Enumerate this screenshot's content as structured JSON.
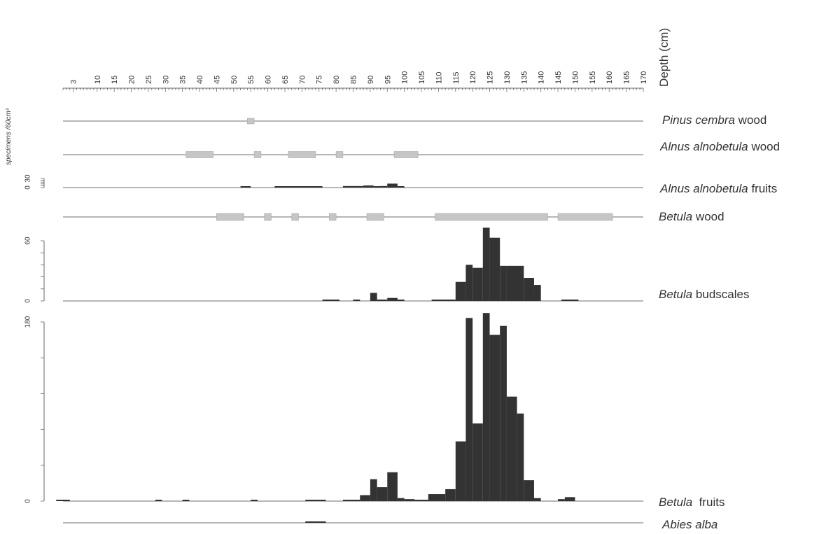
{
  "colors": {
    "axis": "#666666",
    "baseline": "#8a8a8a",
    "bar": "#333333",
    "presence": "#c6c6c6",
    "presence_stroke": "#a8a8a8",
    "text": "#333333"
  },
  "chart_data": {
    "type": "bar",
    "title": "",
    "depth_axis": {
      "label": "Depth (cm)",
      "range": [
        0,
        170
      ],
      "tick_labels": [
        3,
        10,
        15,
        20,
        25,
        30,
        35,
        40,
        45,
        50,
        55,
        60,
        65,
        70,
        75,
        80,
        85,
        90,
        95,
        100,
        105,
        110,
        115,
        120,
        125,
        130,
        135,
        140,
        145,
        150,
        155,
        160,
        165,
        170
      ],
      "minor_tick_step": 1
    },
    "y_unit_label": "specimens /60cm³",
    "series": [
      {
        "id": "pinus_wood",
        "name": "Pinus cembra wood",
        "label_italic": "Pinus cembra",
        "label_rest": " wood",
        "kind": "presence",
        "intervals": [
          [
            54,
            56
          ]
        ]
      },
      {
        "id": "alnus_wood",
        "name": "Alnus alnobetula wood",
        "label_italic": "Alnus alnobetula",
        "label_rest": " wood",
        "kind": "presence",
        "intervals": [
          [
            36,
            44
          ],
          [
            56,
            58
          ],
          [
            66,
            74
          ],
          [
            80,
            82
          ],
          [
            97,
            104
          ]
        ]
      },
      {
        "id": "alnus_fruits",
        "name": "Alnus alnobetula fruits",
        "label_italic": "Alnus alnobetula",
        "label_rest": " fruits",
        "kind": "bars",
        "ylim": [
          0,
          30
        ],
        "y_tick_labels": [
          0,
          30
        ],
        "bars": [
          {
            "x0": 52,
            "x1": 55,
            "v": 1
          },
          {
            "x0": 62,
            "x1": 66,
            "v": 3
          },
          {
            "x0": 66,
            "x1": 76,
            "v": 1
          },
          {
            "x0": 82,
            "x1": 88,
            "v": 5
          },
          {
            "x0": 88,
            "x1": 91,
            "v": 7
          },
          {
            "x0": 91,
            "x1": 93,
            "v": 3
          },
          {
            "x0": 93,
            "x1": 95,
            "v": 5
          },
          {
            "x0": 95,
            "x1": 98,
            "v": 13
          },
          {
            "x0": 98,
            "x1": 100,
            "v": 1
          }
        ]
      },
      {
        "id": "betula_wood",
        "name": "Betula wood",
        "label_italic": "Betula",
        "label_rest": " wood",
        "kind": "presence",
        "intervals": [
          [
            45,
            53
          ],
          [
            59,
            61
          ],
          [
            67,
            69
          ],
          [
            78,
            80
          ],
          [
            89,
            94
          ],
          [
            109,
            142
          ],
          [
            145,
            161
          ]
        ]
      },
      {
        "id": "betula_budscales",
        "name": "Betula budscales",
        "label_italic": "Betula",
        "label_rest": " budscales",
        "kind": "bars",
        "ylim": [
          0,
          60
        ],
        "y_tick_labels": [
          0,
          60
        ],
        "bars": [
          {
            "x0": 76,
            "x1": 81,
            "v": 1
          },
          {
            "x0": 85,
            "x1": 87,
            "v": 1
          },
          {
            "x0": 90,
            "x1": 92,
            "v": 8
          },
          {
            "x0": 92,
            "x1": 95,
            "v": 1
          },
          {
            "x0": 95,
            "x1": 98,
            "v": 3
          },
          {
            "x0": 98,
            "x1": 100,
            "v": 1
          },
          {
            "x0": 108,
            "x1": 115,
            "v": 1
          },
          {
            "x0": 115,
            "x1": 118,
            "v": 19
          },
          {
            "x0": 118,
            "x1": 120,
            "v": 36
          },
          {
            "x0": 120,
            "x1": 123,
            "v": 33
          },
          {
            "x0": 123,
            "x1": 125,
            "v": 73
          },
          {
            "x0": 125,
            "x1": 128,
            "v": 63
          },
          {
            "x0": 128,
            "x1": 130,
            "v": 35
          },
          {
            "x0": 130,
            "x1": 135,
            "v": 35
          },
          {
            "x0": 135,
            "x1": 138,
            "v": 23
          },
          {
            "x0": 138,
            "x1": 140,
            "v": 16
          },
          {
            "x0": 146,
            "x1": 149,
            "v": 1
          },
          {
            "x0": 149,
            "x1": 151,
            "v": 1
          }
        ]
      },
      {
        "id": "betula_fruits",
        "name": "Betula fruits",
        "label_italic": "Betula",
        "label_rest": "  fruits",
        "kind": "bars",
        "ylim": [
          0,
          180
        ],
        "y_tick_labels": [
          0,
          180
        ],
        "bars": [
          {
            "x0": -2,
            "x1": 2,
            "v": 1
          },
          {
            "x0": 27,
            "x1": 29,
            "v": 1
          },
          {
            "x0": 35,
            "x1": 37,
            "v": 1
          },
          {
            "x0": 55,
            "x1": 57,
            "v": 1
          },
          {
            "x0": 71,
            "x1": 77,
            "v": 1
          },
          {
            "x0": 82,
            "x1": 87,
            "v": 1
          },
          {
            "x0": 87,
            "x1": 90,
            "v": 6
          },
          {
            "x0": 90,
            "x1": 92,
            "v": 22
          },
          {
            "x0": 92,
            "x1": 95,
            "v": 14
          },
          {
            "x0": 95,
            "x1": 98,
            "v": 29
          },
          {
            "x0": 98,
            "x1": 100,
            "v": 3
          },
          {
            "x0": 100,
            "x1": 103,
            "v": 2
          },
          {
            "x0": 103,
            "x1": 107,
            "v": 1
          },
          {
            "x0": 107,
            "x1": 112,
            "v": 7
          },
          {
            "x0": 112,
            "x1": 115,
            "v": 12
          },
          {
            "x0": 115,
            "x1": 118,
            "v": 60
          },
          {
            "x0": 118,
            "x1": 120,
            "v": 184
          },
          {
            "x0": 120,
            "x1": 123,
            "v": 78
          },
          {
            "x0": 123,
            "x1": 125,
            "v": 189
          },
          {
            "x0": 125,
            "x1": 128,
            "v": 167
          },
          {
            "x0": 128,
            "x1": 130,
            "v": 176
          },
          {
            "x0": 130,
            "x1": 133,
            "v": 105
          },
          {
            "x0": 133,
            "x1": 135,
            "v": 88
          },
          {
            "x0": 135,
            "x1": 138,
            "v": 21
          },
          {
            "x0": 138,
            "x1": 140,
            "v": 3
          },
          {
            "x0": 145,
            "x1": 147,
            "v": 2
          },
          {
            "x0": 147,
            "x1": 150,
            "v": 4
          }
        ]
      },
      {
        "id": "abies_alba",
        "name": "Abies alba",
        "label_italic": "Abies alba",
        "label_rest": "",
        "kind": "bars",
        "ylim": [
          0,
          30
        ],
        "bars": [
          {
            "x0": 71,
            "x1": 77,
            "v": 1
          }
        ]
      }
    ]
  }
}
